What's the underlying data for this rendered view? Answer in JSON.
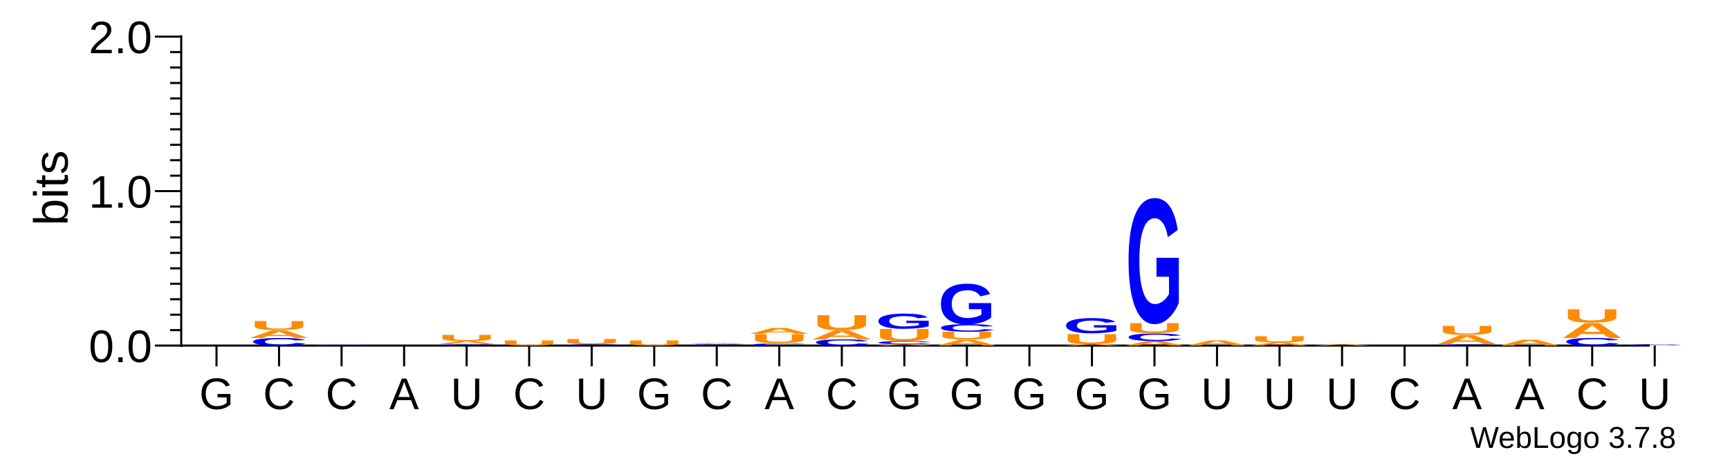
{
  "chart_data": {
    "type": "sequence-logo",
    "ylabel": "bits",
    "ylim": [
      0,
      2.0
    ],
    "yticks": [
      "0.0",
      "1.0",
      "2.0"
    ],
    "positions": [
      "G",
      "C",
      "C",
      "A",
      "U",
      "C",
      "U",
      "G",
      "C",
      "A",
      "C",
      "G",
      "G",
      "G",
      "G",
      "G",
      "U",
      "U",
      "U",
      "C",
      "A",
      "A",
      "C",
      "U"
    ],
    "stacks": [
      [],
      [
        {
          "base": "C",
          "bits": 0.05
        },
        {
          "base": "A",
          "bits": 0.05
        },
        {
          "base": "U",
          "bits": 0.06
        }
      ],
      [
        {
          "base": "C",
          "bits": 0.005
        }
      ],
      [],
      [
        {
          "base": "C",
          "bits": 0.01
        },
        {
          "base": "A",
          "bits": 0.02
        },
        {
          "base": "U",
          "bits": 0.04
        }
      ],
      [
        {
          "base": "U",
          "bits": 0.035
        }
      ],
      [
        {
          "base": "C",
          "bits": 0.01
        },
        {
          "base": "U",
          "bits": 0.035
        }
      ],
      [
        {
          "base": "U",
          "bits": 0.035
        }
      ],
      [
        {
          "base": "C",
          "bits": 0.01
        },
        {
          "base": "A",
          "bits": 0.01
        }
      ],
      [
        {
          "base": "C",
          "bits": 0.015
        },
        {
          "base": "U",
          "bits": 0.06
        },
        {
          "base": "A",
          "bits": 0.04
        }
      ],
      [
        {
          "base": "C",
          "bits": 0.04
        },
        {
          "base": "A",
          "bits": 0.06
        },
        {
          "base": "U",
          "bits": 0.1
        }
      ],
      [
        {
          "base": "A",
          "bits": 0.01
        },
        {
          "base": "C",
          "bits": 0.02
        },
        {
          "base": "U",
          "bits": 0.08
        },
        {
          "base": "G",
          "bits": 0.1
        }
      ],
      [
        {
          "base": "A",
          "bits": 0.04
        },
        {
          "base": "U",
          "bits": 0.05
        },
        {
          "base": "C",
          "bits": 0.05
        },
        {
          "base": "G",
          "bits": 0.27
        }
      ],
      [],
      [
        {
          "base": "A",
          "bits": 0.01
        },
        {
          "base": "U",
          "bits": 0.07
        },
        {
          "base": "G",
          "bits": 0.1
        }
      ],
      [
        {
          "base": "A",
          "bits": 0.03
        },
        {
          "base": "C",
          "bits": 0.05
        },
        {
          "base": "U",
          "bits": 0.07
        },
        {
          "base": "G",
          "bits": 0.83
        }
      ],
      [
        {
          "base": "A",
          "bits": 0.035
        }
      ],
      [
        {
          "base": "A",
          "bits": 0.02
        },
        {
          "base": "U",
          "bits": 0.04
        }
      ],
      [
        {
          "base": "A",
          "bits": 0.01
        }
      ],
      [],
      [
        {
          "base": "C",
          "bits": 0.01
        },
        {
          "base": "A",
          "bits": 0.06
        },
        {
          "base": "U",
          "bits": 0.06
        }
      ],
      [
        {
          "base": "A",
          "bits": 0.04
        }
      ],
      [
        {
          "base": "C",
          "bits": 0.05
        },
        {
          "base": "A",
          "bits": 0.1
        },
        {
          "base": "U",
          "bits": 0.09
        }
      ],
      [
        {
          "base": "C",
          "bits": 0.01
        }
      ]
    ],
    "colors": {
      "G": "#0000ff",
      "C": "#0000ff",
      "A": "#ff8c00",
      "U": "#ff8c00"
    }
  },
  "footer": {
    "credit": "WebLogo 3.7.8"
  }
}
